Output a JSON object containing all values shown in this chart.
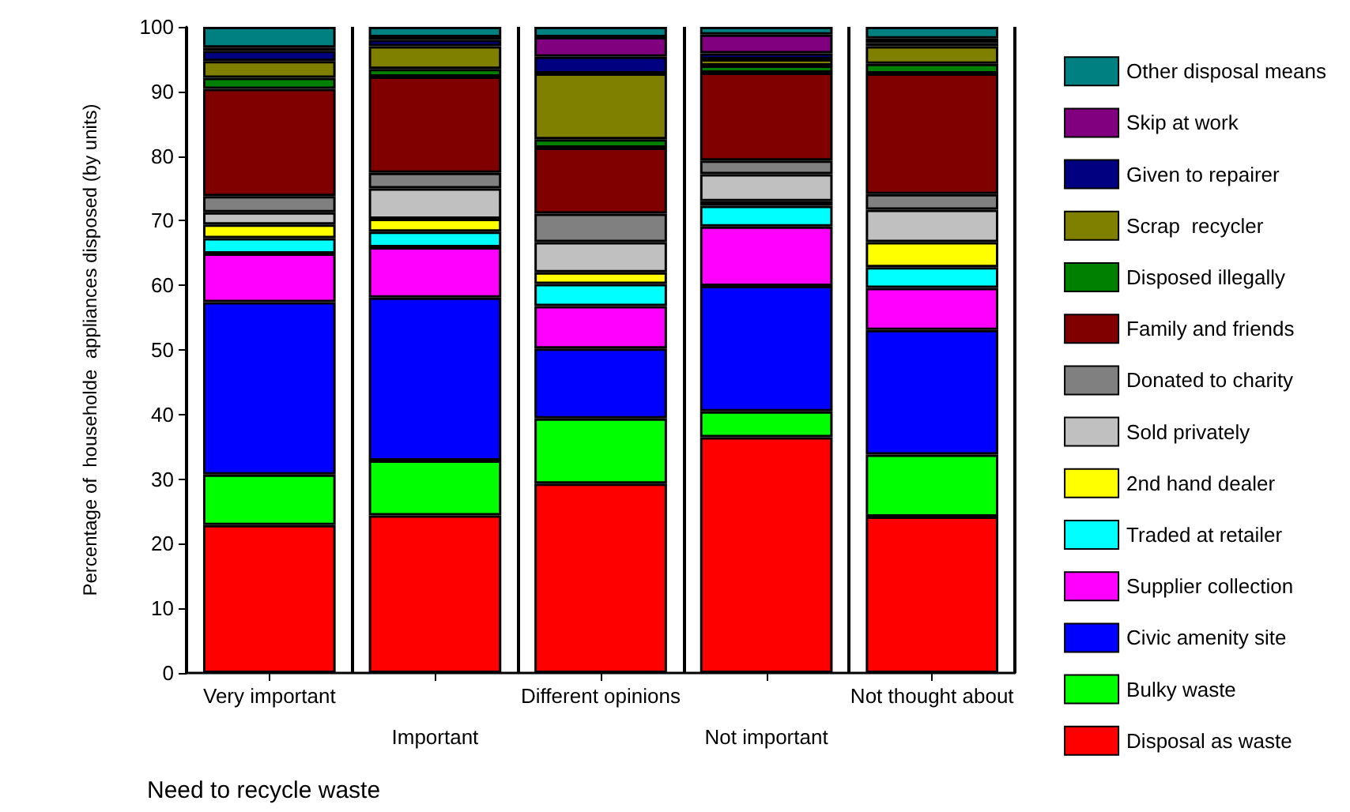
{
  "chart_data": {
    "type": "bar",
    "stacked": true,
    "xlabel": "Need to recycle waste",
    "ylabel": "Percentage of  householde  appliances disposed (by units)",
    "categories": [
      "Very important",
      "Important",
      "Different opinions",
      "Not important",
      "Not thought about"
    ],
    "ylim": [
      0,
      100
    ],
    "yticks": [
      0,
      10,
      20,
      30,
      40,
      50,
      60,
      70,
      80,
      90,
      100
    ],
    "grid": "x",
    "legend": "right",
    "series": [
      {
        "name": "Disposal as waste",
        "color": "#ff0000",
        "values": [
          22.9,
          24.4,
          29.3,
          36.5,
          24.2
        ]
      },
      {
        "name": "Bulky waste",
        "color": "#00ff00",
        "values": [
          7.8,
          8.5,
          10.1,
          4.0,
          9.6
        ]
      },
      {
        "name": "Civic amenity site",
        "color": "#0000ff",
        "values": [
          26.7,
          25.2,
          10.8,
          19.4,
          19.3
        ]
      },
      {
        "name": "Supplier collection",
        "color": "#ff00ff",
        "values": [
          7.5,
          7.8,
          6.6,
          9.2,
          6.5
        ]
      },
      {
        "name": "Traded at retailer",
        "color": "#00ffff",
        "values": [
          2.4,
          2.4,
          3.4,
          3.2,
          3.2
        ]
      },
      {
        "name": "2nd hand dealer",
        "color": "#ffff00",
        "values": [
          2.1,
          2.0,
          1.8,
          0.7,
          3.9
        ]
      },
      {
        "name": "Sold privately",
        "color": "#c0c0c0",
        "values": [
          1.9,
          4.7,
          4.7,
          4.2,
          5.0
        ]
      },
      {
        "name": "Donated to charity",
        "color": "#808080",
        "values": [
          2.5,
          2.4,
          4.4,
          2.1,
          2.4
        ]
      },
      {
        "name": "Family and friends",
        "color": "#800000",
        "values": [
          16.6,
          14.9,
          10.2,
          13.6,
          18.7
        ]
      },
      {
        "name": "Disposed illegally",
        "color": "#008000",
        "values": [
          1.7,
          1.2,
          1.3,
          1.1,
          1.5
        ]
      },
      {
        "name": "Scrap  recycler",
        "color": "#808000",
        "values": [
          2.6,
          3.5,
          10.2,
          1.0,
          2.7
        ]
      },
      {
        "name": "Given to repairer",
        "color": "#000080",
        "values": [
          1.6,
          1.0,
          2.6,
          0.9,
          0.5
        ]
      },
      {
        "name": "Skip at work",
        "color": "#800080",
        "values": [
          0.5,
          0.4,
          3.0,
          2.9,
          0.7
        ]
      },
      {
        "name": "Other disposal means",
        "color": "#008080",
        "values": [
          3.2,
          1.6,
          1.6,
          1.2,
          1.8
        ]
      }
    ]
  }
}
